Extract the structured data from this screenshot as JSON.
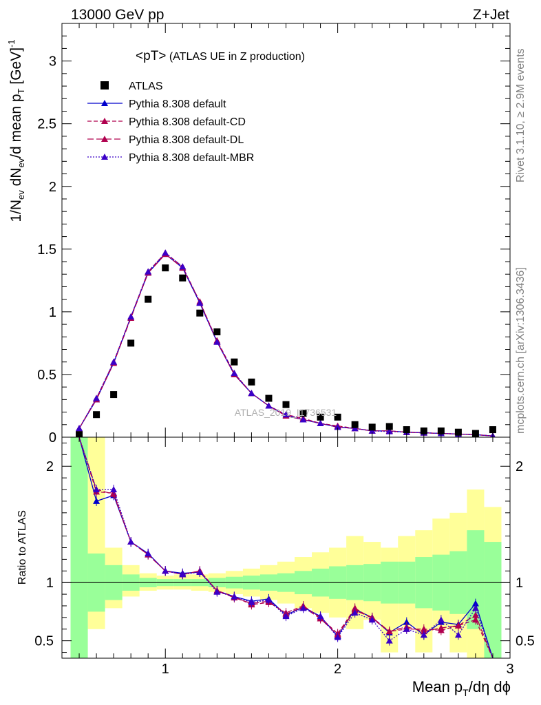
{
  "chart_data": {
    "type": "scatter",
    "header_left": "13000 GeV pp",
    "header_right": "Z+Jet",
    "title": "<pT>",
    "title_suffix": " (ATLAS UE in Z production)",
    "ylabel": {
      "base": "1/N",
      "sub1": "ev",
      "mid1": " dN",
      "sub2": "ev",
      "mid2": "/d mean p",
      "sub3": "T",
      "mid3": " [GeV]",
      "sup": "-1"
    },
    "ratio_ylabel": "Ratio to ATLAS",
    "xlabel": {
      "pre": "Mean p",
      "sub": "T",
      "post": "/dη dϕ"
    },
    "right_text_top": "Rivet 3.1.10, ≥ 2.9M events",
    "right_text_bottom": "mcplots.cern.ch [arXiv:1306.3436]",
    "watermark": "ATLAS_2019_I1736531",
    "xlim": [
      0.4,
      3.0
    ],
    "ylim": [
      0,
      3.3
    ],
    "ratio_ylim": [
      0.35,
      2.25
    ],
    "x_ticks": [
      "1",
      "2",
      "3"
    ],
    "y_ticks": [
      "0",
      "0.5",
      "1",
      "1.5",
      "2",
      "2.5",
      "3"
    ],
    "ratio_y_ticks": [
      "0.5",
      "1",
      "2"
    ],
    "x": [
      0.5,
      0.6,
      0.7,
      0.8,
      0.9,
      1.0,
      1.1,
      1.2,
      1.3,
      1.4,
      1.5,
      1.6,
      1.7,
      1.8,
      1.9,
      2.0,
      2.1,
      2.2,
      2.3,
      2.4,
      2.5,
      2.6,
      2.7,
      2.8,
      2.9
    ],
    "data": {
      "name": "ATLAS",
      "values": [
        0.02,
        0.18,
        0.34,
        0.75,
        1.1,
        1.35,
        1.27,
        0.99,
        0.84,
        0.6,
        0.44,
        0.31,
        0.26,
        0.19,
        0.16,
        0.16,
        0.1,
        0.08,
        0.085,
        0.06,
        0.05,
        0.05,
        0.04,
        0.03,
        0.06
      ],
      "stat_band": [
        [
          0.35,
          2.25
        ],
        [
          0.75,
          1.25
        ],
        [
          0.85,
          1.15
        ],
        [
          0.93,
          1.07
        ],
        [
          0.96,
          1.04
        ],
        [
          0.97,
          1.03
        ],
        [
          0.97,
          1.03
        ],
        [
          0.97,
          1.03
        ],
        [
          0.96,
          1.04
        ],
        [
          0.95,
          1.05
        ],
        [
          0.94,
          1.06
        ],
        [
          0.93,
          1.07
        ],
        [
          0.92,
          1.08
        ],
        [
          0.9,
          1.1
        ],
        [
          0.88,
          1.12
        ],
        [
          0.86,
          1.14
        ],
        [
          0.85,
          1.15
        ],
        [
          0.84,
          1.16
        ],
        [
          0.82,
          1.18
        ],
        [
          0.82,
          1.18
        ],
        [
          0.78,
          1.22
        ],
        [
          0.76,
          1.24
        ],
        [
          0.73,
          1.27
        ],
        [
          0.6,
          1.45
        ],
        [
          0.35,
          1.35
        ]
      ],
      "syst_band": [
        [
          0.35,
          2.25
        ],
        [
          0.6,
          2.25
        ],
        [
          0.78,
          1.3
        ],
        [
          0.88,
          1.15
        ],
        [
          0.93,
          1.08
        ],
        [
          0.94,
          1.06
        ],
        [
          0.94,
          1.07
        ],
        [
          0.93,
          1.07
        ],
        [
          0.92,
          1.08
        ],
        [
          0.9,
          1.1
        ],
        [
          0.88,
          1.12
        ],
        [
          0.85,
          1.15
        ],
        [
          0.82,
          1.18
        ],
        [
          0.78,
          1.22
        ],
        [
          0.74,
          1.26
        ],
        [
          0.7,
          1.3
        ],
        [
          0.6,
          1.4
        ],
        [
          0.68,
          1.35
        ],
        [
          0.4,
          1.3
        ],
        [
          0.62,
          1.4
        ],
        [
          0.4,
          1.45
        ],
        [
          0.6,
          1.55
        ],
        [
          0.4,
          1.6
        ],
        [
          0.35,
          1.8
        ],
        [
          0.35,
          1.65
        ]
      ]
    },
    "series": [
      {
        "name": "Pythia 8.308 default",
        "color": "#0000cc",
        "dash": "",
        "values": [
          0.07,
          0.3,
          0.59,
          0.96,
          1.31,
          1.46,
          1.35,
          1.07,
          0.76,
          0.5,
          0.35,
          0.25,
          0.17,
          0.14,
          0.11,
          0.08,
          0.07,
          0.05,
          0.05,
          0.04,
          0.035,
          0.03,
          0.025,
          0.02,
          0.01
        ],
        "ratio": [
          2.25,
          1.7,
          1.75,
          1.35,
          1.25,
          1.1,
          1.08,
          1.09,
          0.93,
          0.88,
          0.84,
          0.86,
          0.72,
          0.79,
          0.71,
          0.54,
          0.77,
          0.7,
          0.57,
          0.66,
          0.55,
          0.66,
          0.64,
          0.82,
          0.3
        ]
      },
      {
        "name": "Pythia 8.308 default-CD",
        "color": "#b0004e",
        "dash": "6,3",
        "values": [
          0.07,
          0.31,
          0.6,
          0.96,
          1.32,
          1.47,
          1.36,
          1.08,
          0.77,
          0.51,
          0.35,
          0.25,
          0.18,
          0.15,
          0.11,
          0.09,
          0.07,
          0.05,
          0.05,
          0.04,
          0.035,
          0.03,
          0.025,
          0.02,
          0.01
        ],
        "ratio": [
          2.25,
          1.78,
          1.77,
          1.35,
          1.24,
          1.1,
          1.07,
          1.1,
          0.93,
          0.88,
          0.81,
          0.83,
          0.74,
          0.8,
          0.7,
          0.56,
          0.78,
          0.69,
          0.58,
          0.6,
          0.6,
          0.59,
          0.63,
          0.68,
          0.3
        ]
      },
      {
        "name": "Pythia 8.308 default-DL",
        "color": "#b0004e",
        "dash": "9,4",
        "values": [
          0.07,
          0.3,
          0.59,
          0.95,
          1.31,
          1.46,
          1.35,
          1.08,
          0.76,
          0.5,
          0.35,
          0.25,
          0.17,
          0.14,
          0.11,
          0.08,
          0.07,
          0.05,
          0.05,
          0.04,
          0.035,
          0.03,
          0.025,
          0.02,
          0.01
        ],
        "ratio": [
          2.25,
          1.8,
          1.76,
          1.35,
          1.24,
          1.1,
          1.07,
          1.1,
          0.93,
          0.87,
          0.82,
          0.84,
          0.73,
          0.79,
          0.69,
          0.55,
          0.76,
          0.7,
          0.58,
          0.62,
          0.58,
          0.61,
          0.63,
          0.72,
          0.3
        ]
      },
      {
        "name": "Pythia 8.308 default-MBR",
        "color": "#3a00c8",
        "dash": "2,2",
        "values": [
          0.07,
          0.31,
          0.6,
          0.96,
          1.32,
          1.47,
          1.36,
          1.07,
          0.76,
          0.51,
          0.35,
          0.25,
          0.18,
          0.14,
          0.11,
          0.08,
          0.07,
          0.05,
          0.045,
          0.04,
          0.035,
          0.03,
          0.025,
          0.02,
          0.01
        ],
        "ratio": [
          2.25,
          1.8,
          1.8,
          1.35,
          1.25,
          1.1,
          1.07,
          1.09,
          0.92,
          0.88,
          0.83,
          0.85,
          0.71,
          0.78,
          0.71,
          0.53,
          0.74,
          0.68,
          0.5,
          0.6,
          0.55,
          0.68,
          0.55,
          0.78,
          0.3
        ]
      }
    ]
  }
}
